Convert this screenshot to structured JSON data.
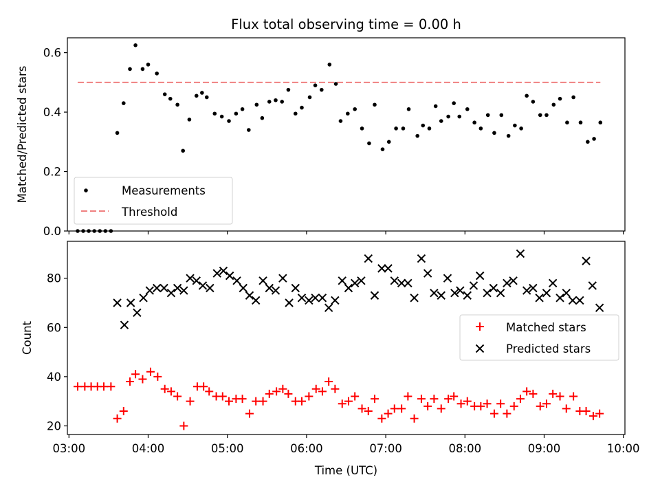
{
  "chart_data": [
    {
      "panel": "top",
      "type": "scatter",
      "title": "Flux total observing time = 0.00 h",
      "ylabel": "Matched/Predicted stars",
      "ylim": [
        0,
        0.65
      ],
      "yticks": [
        0.0,
        0.2,
        0.4,
        0.6
      ],
      "ytick_labels": [
        "0.0",
        "0.2",
        "0.4",
        "0.6"
      ],
      "xlim": [
        2.98,
        10.02
      ],
      "xticks": [
        3,
        4,
        5,
        6,
        7,
        8,
        9,
        10
      ],
      "legend": {
        "position": "lower-left",
        "entries": [
          "Measurements",
          "Threshold"
        ]
      },
      "series": [
        {
          "name": "Measurements",
          "color": "#000000",
          "marker": "dot",
          "x": [
            3.11,
            3.18,
            3.25,
            3.32,
            3.39,
            3.46,
            3.53,
            3.61,
            3.69,
            3.77,
            3.84,
            3.93,
            4.0,
            4.11,
            4.21,
            4.28,
            4.37,
            4.44,
            4.52,
            4.61,
            4.68,
            4.74,
            4.84,
            4.93,
            5.02,
            5.11,
            5.19,
            5.27,
            5.37,
            5.44,
            5.53,
            5.61,
            5.69,
            5.77,
            5.86,
            5.94,
            6.04,
            6.11,
            6.19,
            6.29,
            6.37,
            6.43,
            6.52,
            6.61,
            6.7,
            6.79,
            6.86,
            6.96,
            7.04,
            7.13,
            7.22,
            7.29,
            7.4,
            7.47,
            7.55,
            7.63,
            7.7,
            7.79,
            7.86,
            7.93,
            8.03,
            8.12,
            8.2,
            8.29,
            8.37,
            8.46,
            8.55,
            8.63,
            8.71,
            8.78,
            8.86,
            8.95,
            9.03,
            9.12,
            9.2,
            9.29,
            9.37,
            9.46,
            9.55,
            9.63,
            9.71
          ],
          "y": [
            0.0,
            0.0,
            0.0,
            0.0,
            0.0,
            0.0,
            0.0,
            0.33,
            0.43,
            0.545,
            0.625,
            0.545,
            0.56,
            0.53,
            0.46,
            0.445,
            0.425,
            0.27,
            0.375,
            0.455,
            0.465,
            0.45,
            0.395,
            0.385,
            0.37,
            0.395,
            0.41,
            0.34,
            0.425,
            0.38,
            0.435,
            0.44,
            0.435,
            0.475,
            0.395,
            0.415,
            0.45,
            0.49,
            0.475,
            0.56,
            0.495,
            0.37,
            0.395,
            0.41,
            0.345,
            0.295,
            0.425,
            0.275,
            0.3,
            0.345,
            0.345,
            0.41,
            0.32,
            0.355,
            0.345,
            0.42,
            0.37,
            0.385,
            0.43,
            0.385,
            0.41,
            0.365,
            0.345,
            0.39,
            0.33,
            0.39,
            0.32,
            0.355,
            0.345,
            0.455,
            0.435,
            0.39,
            0.39,
            0.425,
            0.445,
            0.365,
            0.45,
            0.365,
            0.3,
            0.31,
            0.365
          ]
        },
        {
          "name": "Threshold",
          "color": "#f08080",
          "style": "dashed",
          "x": [
            3.11,
            9.71
          ],
          "y": [
            0.5,
            0.5
          ]
        }
      ]
    },
    {
      "panel": "bottom",
      "type": "scatter",
      "xlabel": "Time (UTC)",
      "ylabel": "Count",
      "ylim": [
        16.5,
        95
      ],
      "yticks": [
        20,
        40,
        60,
        80
      ],
      "ytick_labels": [
        "20",
        "40",
        "60",
        "80"
      ],
      "xlim": [
        2.98,
        10.02
      ],
      "xticks": [
        3,
        4,
        5,
        6,
        7,
        8,
        9,
        10
      ],
      "xtick_labels": [
        "03:00",
        "04:00",
        "05:00",
        "06:00",
        "07:00",
        "08:00",
        "09:00",
        "10:00"
      ],
      "legend": {
        "position": "center-right",
        "entries": [
          "Matched stars",
          "Predicted stars"
        ]
      },
      "series": [
        {
          "name": "Matched stars",
          "color": "#ff0000",
          "marker": "plus",
          "x": [
            3.11,
            3.2,
            3.28,
            3.36,
            3.44,
            3.53,
            3.61,
            3.69,
            3.77,
            3.84,
            3.93,
            4.03,
            4.12,
            4.21,
            4.29,
            4.37,
            4.45,
            4.53,
            4.62,
            4.7,
            4.77,
            4.86,
            4.94,
            5.02,
            5.11,
            5.19,
            5.28,
            5.36,
            5.45,
            5.53,
            5.62,
            5.7,
            5.77,
            5.86,
            5.94,
            6.03,
            6.12,
            6.2,
            6.28,
            6.36,
            6.45,
            6.53,
            6.61,
            6.7,
            6.78,
            6.86,
            6.95,
            7.03,
            7.11,
            7.2,
            7.28,
            7.36,
            7.45,
            7.53,
            7.61,
            7.7,
            7.79,
            7.86,
            7.95,
            8.03,
            8.12,
            8.2,
            8.28,
            8.37,
            8.45,
            8.53,
            8.62,
            8.7,
            8.78,
            8.86,
            8.95,
            9.03,
            9.11,
            9.2,
            9.28,
            9.37,
            9.45,
            9.53,
            9.62,
            9.7
          ],
          "y": [
            36,
            36,
            36,
            36,
            36,
            36,
            23,
            26,
            38,
            41,
            39,
            42,
            40,
            35,
            34,
            32,
            20,
            30,
            36,
            36,
            34,
            32,
            32,
            30,
            31,
            31,
            25,
            30,
            30,
            33,
            34,
            35,
            33,
            30,
            30,
            32,
            35,
            34,
            38,
            35,
            29,
            30,
            32,
            27,
            26,
            31,
            23,
            25,
            27,
            27,
            32,
            23,
            31,
            28,
            31,
            27,
            31,
            32,
            29,
            30,
            28,
            28,
            29,
            25,
            29,
            25,
            28,
            31,
            34,
            33,
            28,
            29,
            33,
            32,
            27,
            32,
            26,
            26,
            24,
            25
          ]
        },
        {
          "name": "Predicted stars",
          "color": "#000000",
          "marker": "x",
          "x": [
            3.61,
            3.7,
            3.78,
            3.86,
            3.94,
            4.02,
            4.11,
            4.2,
            4.29,
            4.37,
            4.45,
            4.53,
            4.61,
            4.69,
            4.78,
            4.87,
            4.95,
            5.03,
            5.12,
            5.2,
            5.28,
            5.36,
            5.45,
            5.53,
            5.61,
            5.7,
            5.78,
            5.86,
            5.94,
            6.03,
            6.11,
            6.2,
            6.28,
            6.36,
            6.45,
            6.53,
            6.61,
            6.69,
            6.78,
            6.86,
            6.95,
            7.03,
            7.11,
            7.2,
            7.28,
            7.36,
            7.45,
            7.53,
            7.61,
            7.7,
            7.78,
            7.87,
            7.94,
            8.03,
            8.11,
            8.19,
            8.28,
            8.36,
            8.45,
            8.53,
            8.61,
            8.7,
            8.78,
            8.86,
            8.94,
            9.03,
            9.11,
            9.2,
            9.28,
            9.36,
            9.45,
            9.53,
            9.61,
            9.7
          ],
          "y": [
            70,
            61,
            70,
            66,
            72,
            75,
            76,
            76,
            74,
            76,
            75,
            80,
            79,
            77,
            76,
            82,
            83,
            81,
            79,
            76,
            73,
            71,
            79,
            76,
            75,
            80,
            70,
            76,
            72,
            71,
            72,
            72,
            68,
            71,
            79,
            76,
            78,
            79,
            88,
            73,
            84,
            84,
            79,
            78,
            78,
            72,
            88,
            82,
            74,
            73,
            80,
            74,
            75,
            73,
            77,
            81,
            74,
            76,
            74,
            78,
            79,
            90,
            75,
            76,
            72,
            74,
            78,
            72,
            74,
            71,
            71,
            87,
            77,
            68
          ]
        }
      ]
    }
  ]
}
